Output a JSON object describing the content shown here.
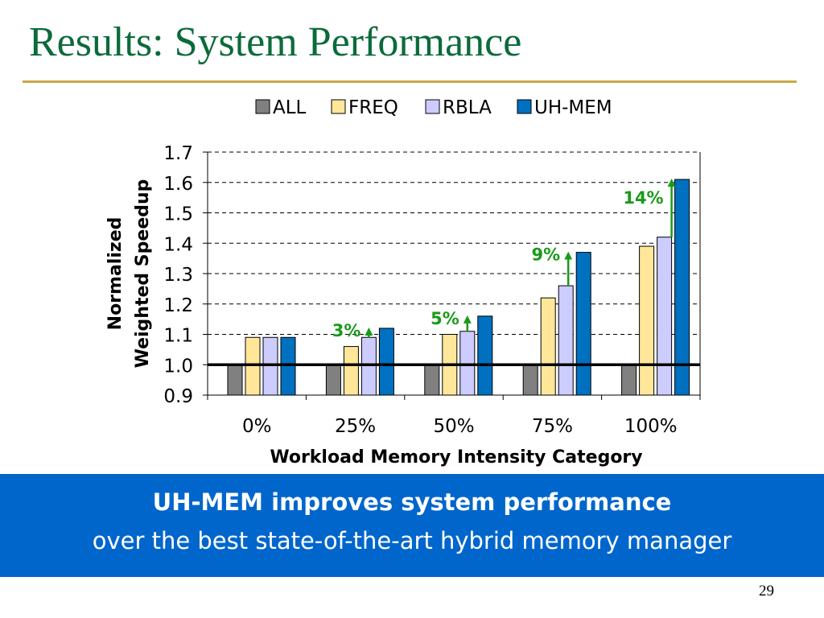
{
  "slide": {
    "title": "Results: System Performance",
    "page_number": "29"
  },
  "takeaway": {
    "headline": "UH-MEM improves system performance",
    "subline": "over the best state-of-the-art hybrid memory manager"
  },
  "colors": {
    "title": "#0b6b3a",
    "rule": "#c8a94a",
    "banner": "#0066cc",
    "annotation": "#1a9a1a"
  },
  "chart_data": {
    "type": "bar",
    "title": "",
    "xlabel": "Workload Memory Intensity Category",
    "ylabel_lines": [
      "Normalized",
      "Weighted Speedup"
    ],
    "categories": [
      "0%",
      "25%",
      "50%",
      "75%",
      "100%"
    ],
    "ylim": [
      0.9,
      1.7
    ],
    "yticks": [
      "0.9",
      "1.0",
      "1.1",
      "1.2",
      "1.3",
      "1.4",
      "1.5",
      "1.6",
      "1.7"
    ],
    "grid": true,
    "baseline": 1.0,
    "legend_placement": "top",
    "series": [
      {
        "name": "ALL",
        "color": "#808080",
        "values": [
          1.0,
          1.0,
          1.0,
          1.0,
          1.0
        ]
      },
      {
        "name": "FREQ",
        "color": "#ffe699",
        "values": [
          1.09,
          1.06,
          1.1,
          1.22,
          1.39
        ]
      },
      {
        "name": "RBLA",
        "color": "#ccccff",
        "values": [
          1.09,
          1.09,
          1.11,
          1.26,
          1.42
        ]
      },
      {
        "name": "UH-MEM",
        "color": "#0070c0",
        "values": [
          1.09,
          1.12,
          1.16,
          1.37,
          1.61
        ]
      }
    ],
    "annotations": [
      {
        "text": "3%",
        "category": "25%",
        "from": 1.09,
        "to": 1.12
      },
      {
        "text": "5%",
        "category": "50%",
        "from": 1.11,
        "to": 1.16
      },
      {
        "text": "9%",
        "category": "75%",
        "from": 1.26,
        "to": 1.37
      },
      {
        "text": "14%",
        "category": "100%",
        "from": 1.42,
        "to": 1.61
      }
    ]
  }
}
